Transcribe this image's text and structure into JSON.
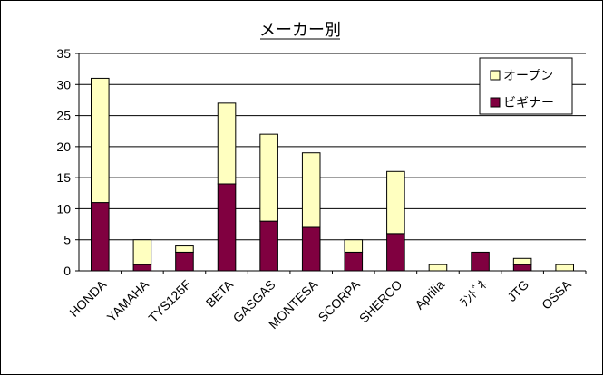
{
  "chart_data": {
    "type": "bar",
    "stacked": true,
    "title": "メーカー別",
    "xlabel": "",
    "ylabel": "",
    "categories": [
      "HONDA",
      "YAMAHA",
      "TYS125F",
      "BETA",
      "GASGAS",
      "MONTESA",
      "SCORPA",
      "SHERCO",
      "Aprilia",
      "ﾗﾝﾄﾞﾈ",
      "JTG",
      "OSSA"
    ],
    "series": [
      {
        "name": "ビギナー",
        "color": "#800040",
        "values": [
          11,
          1,
          3,
          14,
          8,
          7,
          3,
          6,
          0,
          3,
          1,
          0
        ]
      },
      {
        "name": "オープン",
        "color": "#FFFFC0",
        "values": [
          20,
          4,
          1,
          13,
          14,
          12,
          2,
          10,
          1,
          0,
          1,
          1
        ]
      }
    ],
    "ylim": [
      0,
      35
    ],
    "yticks": [
      0,
      5,
      10,
      15,
      20,
      25,
      30,
      35
    ],
    "grid": true,
    "legend_position": "top-right",
    "legend_order": [
      "オープン",
      "ビギナー"
    ]
  }
}
